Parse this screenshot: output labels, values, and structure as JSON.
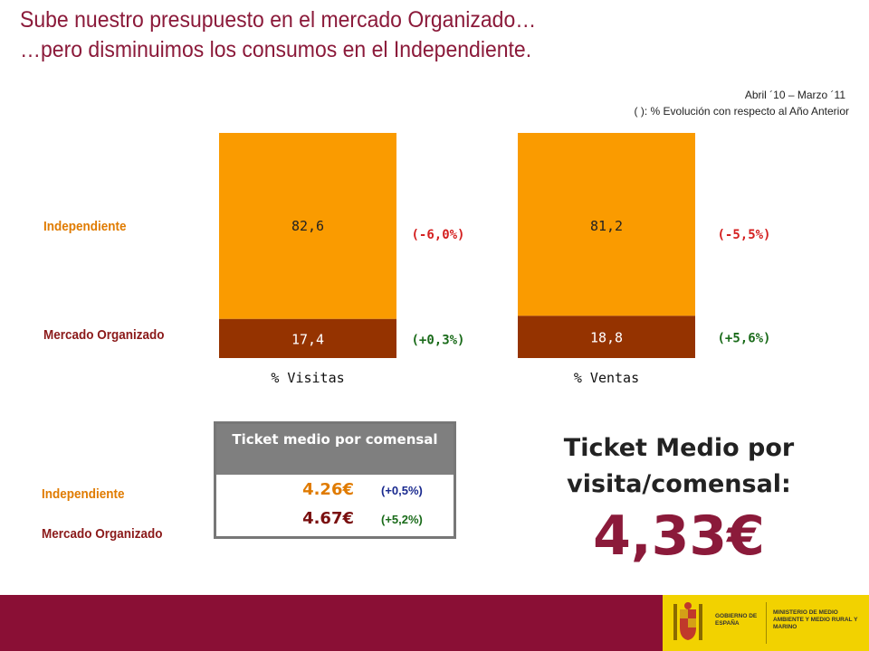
{
  "header": {
    "title_line1": "Sube nuestro presupuesto en el mercado Organizado…",
    "title_line2": "…pero disminuimos los consumos en el Independiente.",
    "period": "Abril ´10 – Marzo ´11",
    "evolution_note": "( ): % Evolución con respecto al Año Anterior"
  },
  "labels": {
    "independiente": "Independiente",
    "mercado_organizado": "Mercado Organizado"
  },
  "colors": {
    "independiente": "#fa9b00",
    "mercado_organizado": "#953300",
    "title": "#8b1a3a",
    "footer": "#8a0f35"
  },
  "chart_data": {
    "type": "bar",
    "stacked": true,
    "categories": [
      "% Visitas",
      "% Ventas"
    ],
    "series": [
      {
        "name": "Mercado Organizado",
        "values": [
          17.4,
          18.8
        ],
        "value_labels": [
          "17,4",
          "18,8"
        ],
        "evolution": [
          "(+0,3%)",
          "(+5,6%)"
        ]
      },
      {
        "name": "Independiente",
        "values": [
          82.6,
          81.2
        ],
        "value_labels": [
          "82,6",
          "81,2"
        ],
        "evolution": [
          "(-6,0%)",
          "(-5,5%)"
        ]
      }
    ],
    "ylim": [
      0,
      100
    ],
    "grid": false
  },
  "ticket_table": {
    "header": "Ticket medio por comensal",
    "rows": [
      {
        "label": "Independiente",
        "value": "4.26€",
        "evolution": "(+0,5%)"
      },
      {
        "label": "Mercado Organizado",
        "value": "4.67€",
        "evolution": "(+5,2%)"
      }
    ]
  },
  "summary": {
    "title": "Ticket Medio por visita/comensal:",
    "value": "4,33€"
  },
  "footer": {
    "logo_left": "GOBIERNO DE ESPAÑA",
    "logo_right": "MINISTERIO DE MEDIO AMBIENTE Y MEDIO RURAL Y MARINO"
  }
}
